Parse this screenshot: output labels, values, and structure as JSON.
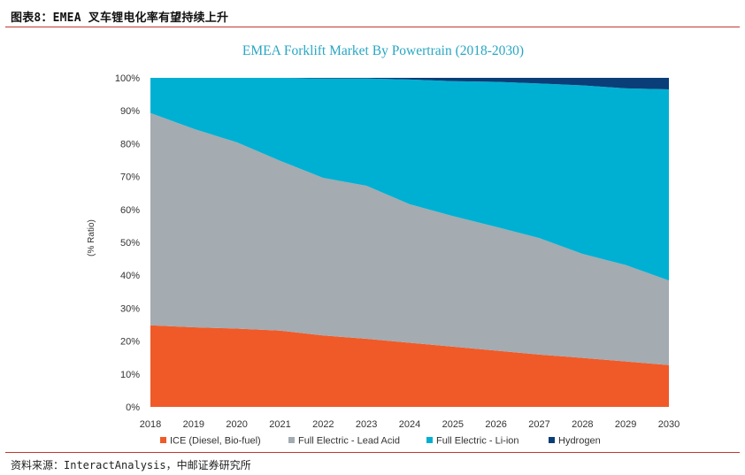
{
  "header": {
    "figure_title": "图表8：EMEA 叉车锂电化率有望持续上升"
  },
  "footer": {
    "source": "资料来源：InteractAnalysis，中邮证券研究所"
  },
  "colors": {
    "ice": "#f05a28",
    "lead_acid": "#a4abb1",
    "li_ion": "#00b0d2",
    "hydrogen": "#0a3e78",
    "title_text": "#27a6c4",
    "axis_text": "#333333"
  },
  "chart_data": {
    "type": "area",
    "stacked": true,
    "title": "EMEA Forklift Market By Powertrain (2018-2030)",
    "ylabel": "(% Ratio)",
    "xlabel": "",
    "x": [
      "2018",
      "2019",
      "2020",
      "2021",
      "2022",
      "2023",
      "2024",
      "2025",
      "2026",
      "2027",
      "2028",
      "2029",
      "2030"
    ],
    "ylim": [
      0,
      100
    ],
    "yticks": [
      "0%",
      "10%",
      "20%",
      "30%",
      "40%",
      "50%",
      "60%",
      "70%",
      "80%",
      "90%",
      "100%"
    ],
    "grid": false,
    "legend_position": "bottom",
    "series": [
      {
        "name": "ICE (Diesel, Bio-fuel)",
        "color": "#f05a28",
        "values": [
          24.8,
          24.2,
          23.8,
          23.2,
          21.7,
          20.7,
          19.5,
          18.3,
          17.1,
          15.9,
          14.9,
          13.8,
          12.7
        ]
      },
      {
        "name": "Full Electric - Lead Acid",
        "color": "#a4abb1",
        "values": [
          64.5,
          60.3,
          56.6,
          51.6,
          47.9,
          46.5,
          42.1,
          39.7,
          37.6,
          35.4,
          31.6,
          29.3,
          25.7
        ]
      },
      {
        "name": "Full Electric - Li-ion",
        "color": "#00b0d2",
        "values": [
          10.7,
          15.5,
          19.6,
          25.2,
          30.2,
          32.6,
          37.9,
          41.0,
          44.1,
          47.0,
          51.2,
          53.7,
          58.1
        ]
      },
      {
        "name": "Hydrogen",
        "color": "#0a3e78",
        "values": [
          0.0,
          0.0,
          0.0,
          0.0,
          0.2,
          0.2,
          0.5,
          1.0,
          1.2,
          1.7,
          2.3,
          3.2,
          3.5
        ]
      }
    ]
  }
}
